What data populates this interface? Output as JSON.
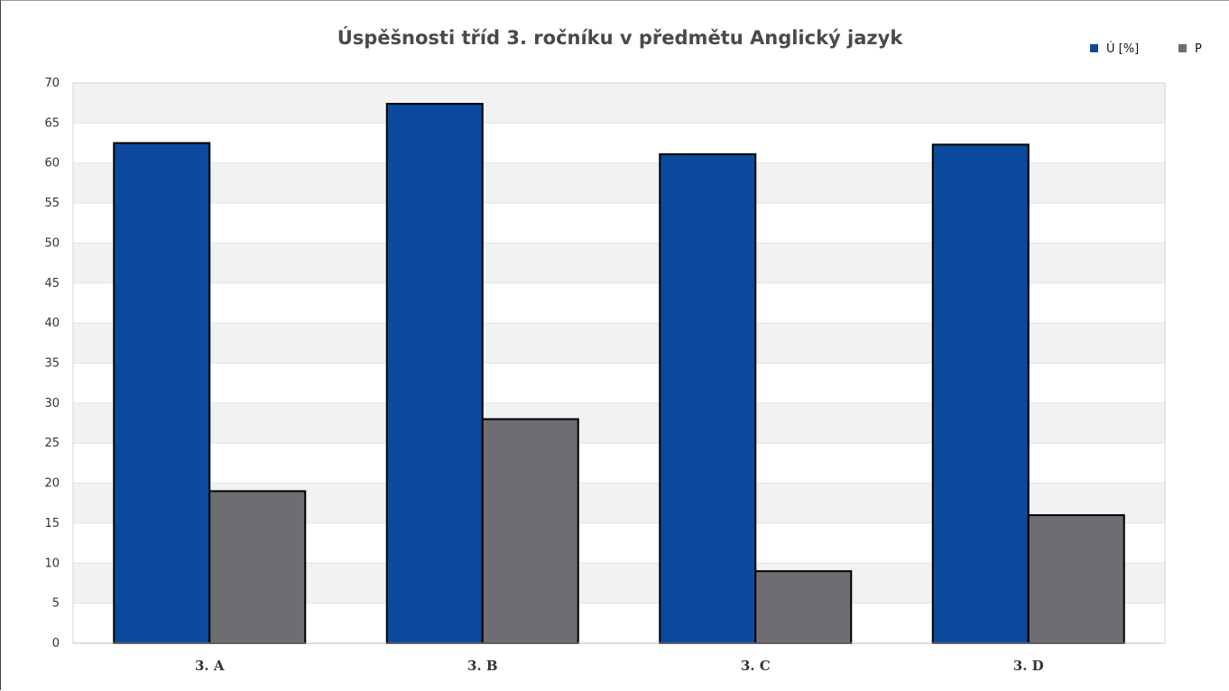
{
  "chart_data": {
    "type": "bar",
    "title": "Úspěšnosti tříd 3. ročníku v předmětu Anglický jazyk",
    "xlabel": "",
    "ylabel": "",
    "categories": [
      "3. A",
      "3. B",
      "3. C",
      "3. D"
    ],
    "series": [
      {
        "name": "Ú [%]",
        "color": "#0c4a9e",
        "values": [
          62.5,
          67.4,
          61.1,
          62.3
        ]
      },
      {
        "name": "P",
        "color": "#6e6e72",
        "values": [
          19,
          28,
          9,
          16
        ]
      }
    ],
    "ylim": [
      0,
      70
    ],
    "yticks": [
      0,
      5,
      10,
      15,
      20,
      25,
      30,
      35,
      40,
      45,
      50,
      55,
      60,
      65,
      70
    ],
    "grid": true,
    "grid_style": "alternating bands",
    "legend_position": "top-right",
    "bar_outline": "#000000"
  }
}
